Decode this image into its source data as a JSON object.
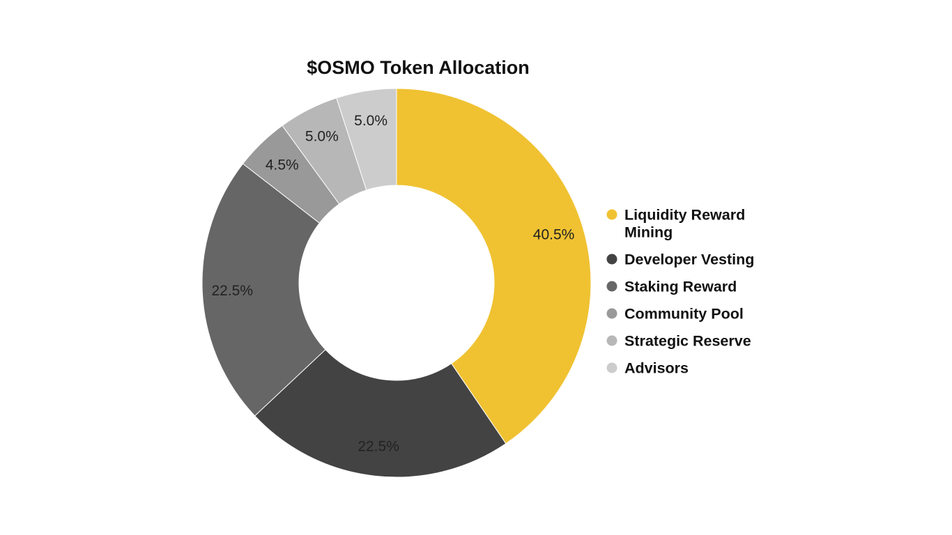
{
  "chart_data": {
    "type": "pie",
    "title": "$OSMO Token Allocation",
    "donut": true,
    "legend_position": "right",
    "slices": [
      {
        "label": "Liquidity Reward Mining",
        "value": 40.5,
        "display": "40.5%",
        "color": "#f0c232"
      },
      {
        "label": "Developer Vesting",
        "value": 22.5,
        "display": "22.5%",
        "color": "#434343"
      },
      {
        "label": "Staking Reward",
        "value": 22.5,
        "display": "22.5%",
        "color": "#666666"
      },
      {
        "label": "Community Pool",
        "value": 4.5,
        "display": "4.5%",
        "color": "#999999"
      },
      {
        "label": "Strategic Reserve",
        "value": 5.0,
        "display": "5.0%",
        "color": "#b7b7b7"
      },
      {
        "label": "Advisors",
        "value": 5.0,
        "display": "5.0%",
        "color": "#cccccc"
      }
    ]
  }
}
